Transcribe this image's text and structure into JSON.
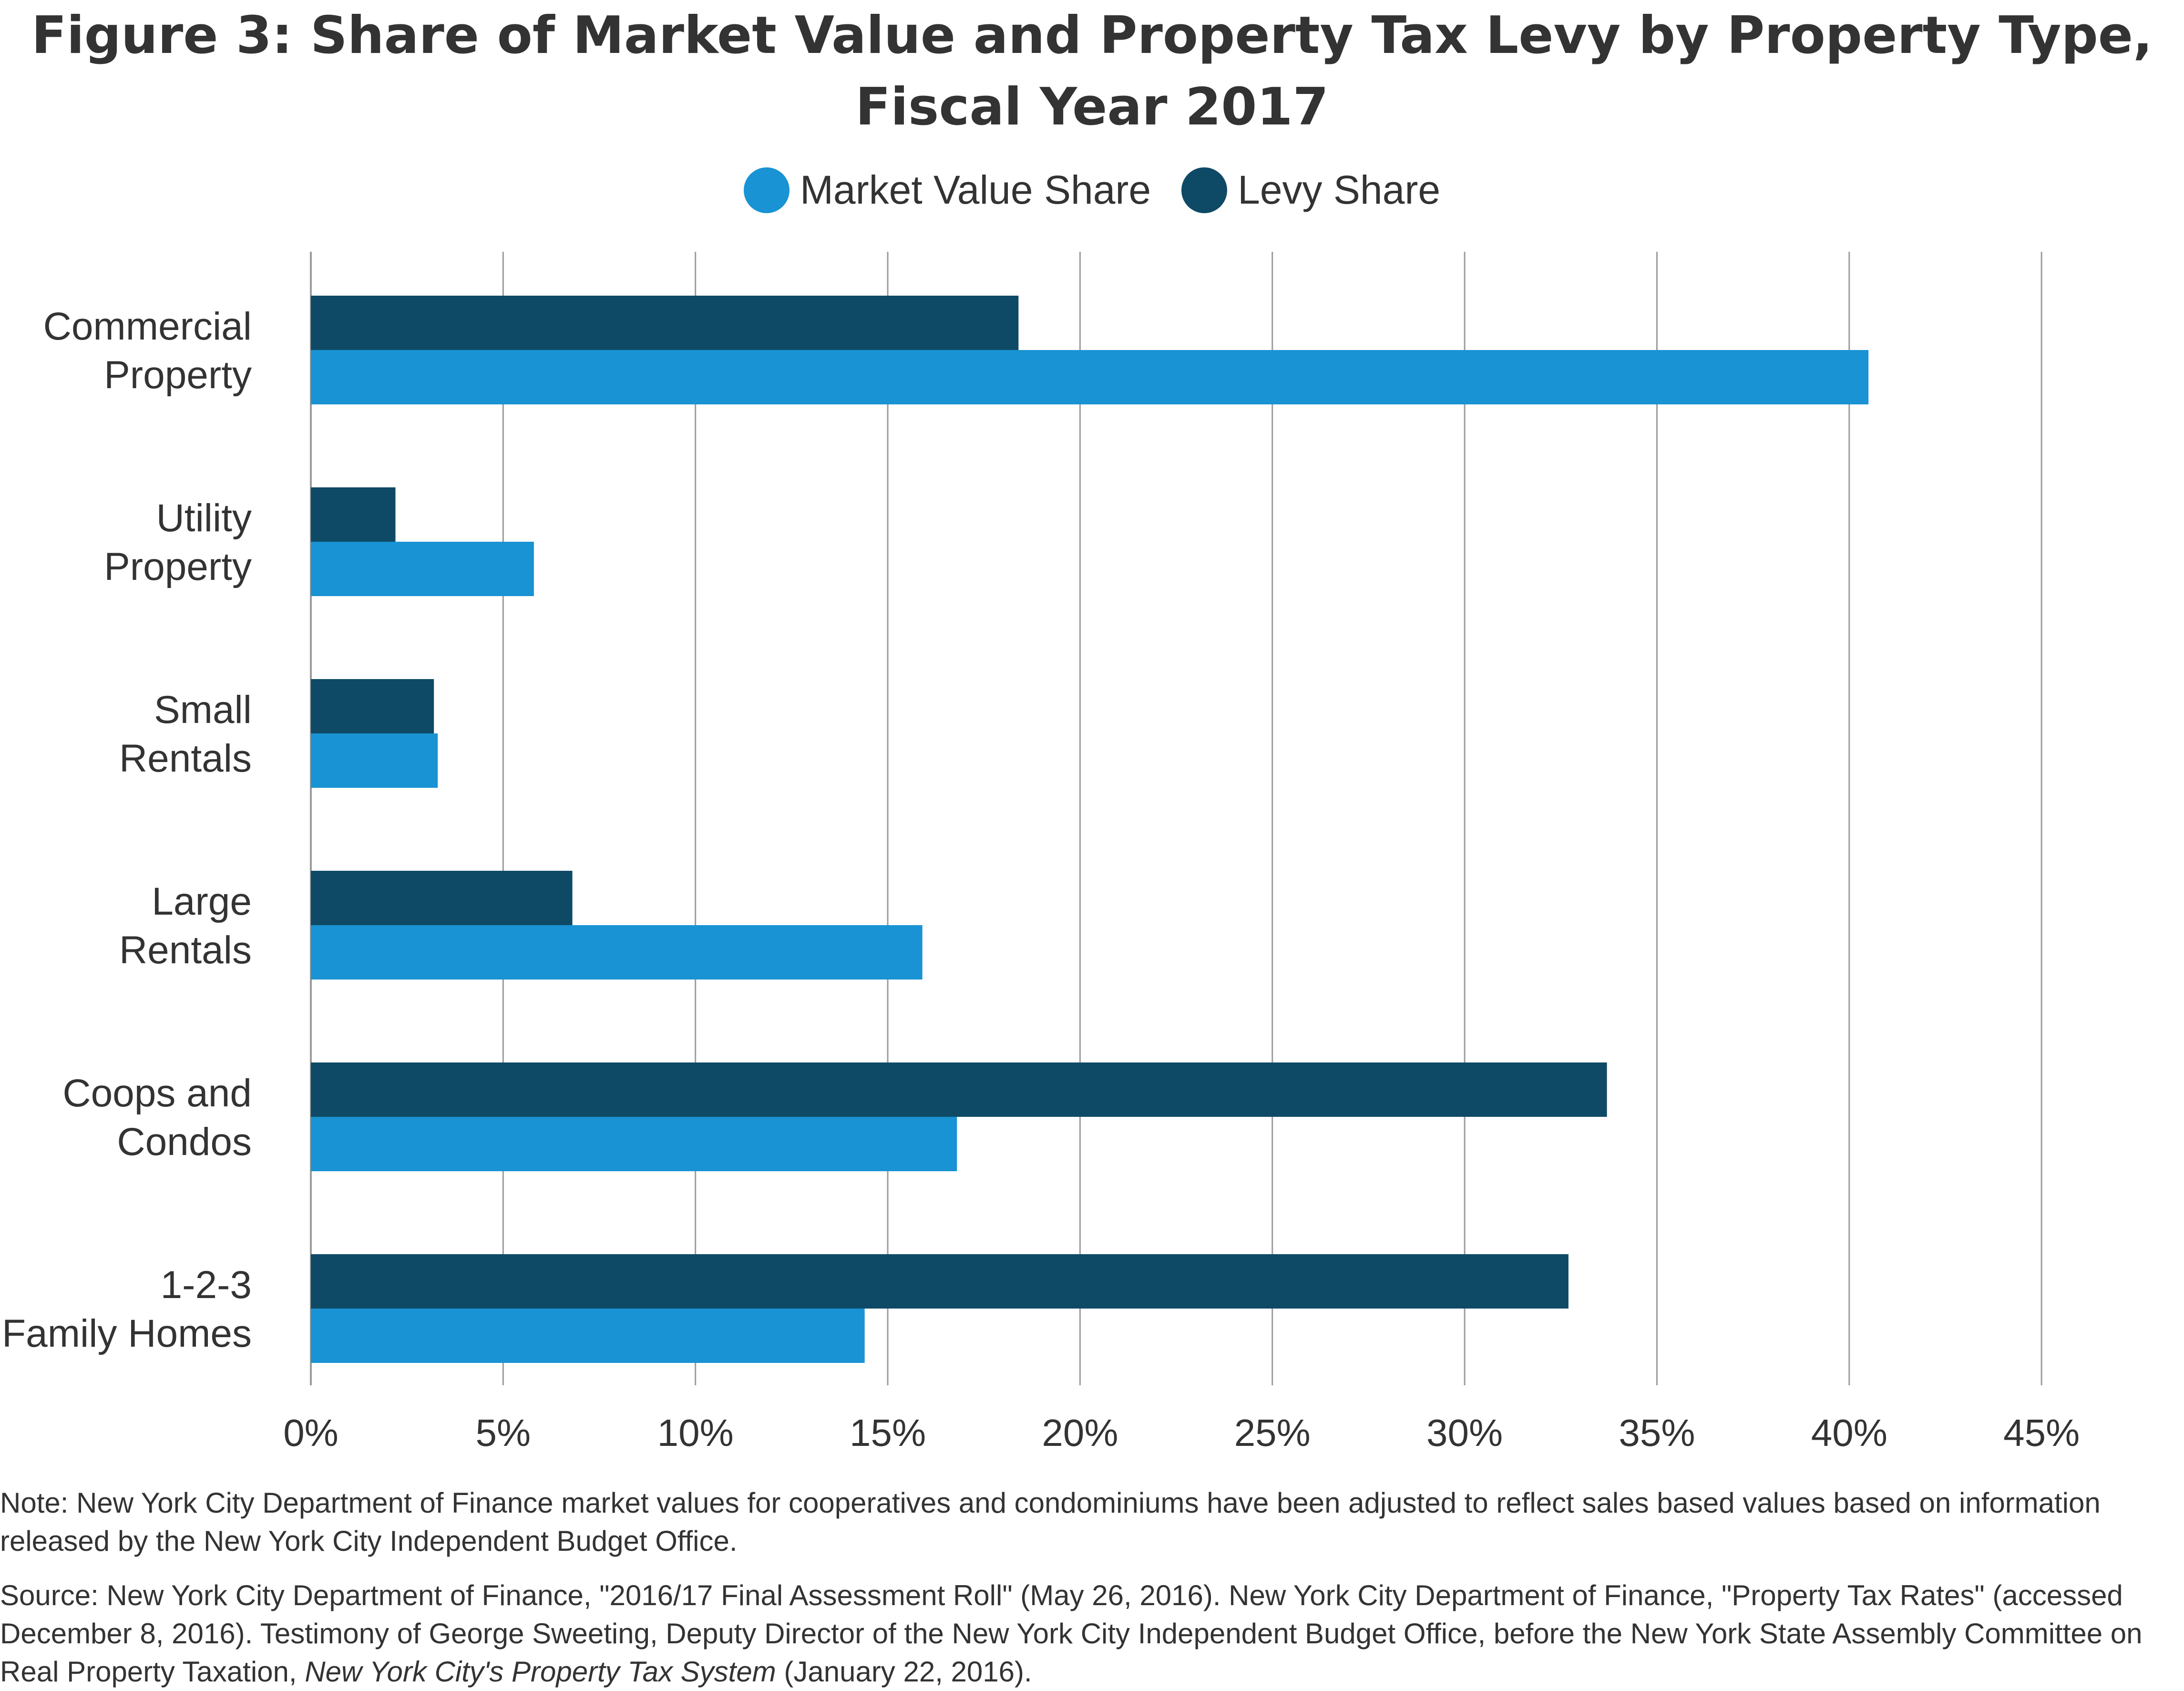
{
  "title_lines": [
    "Figure 3: Share of Market Value and Property Tax Levy by Property Type,",
    "Fiscal Year 2017"
  ],
  "legend": {
    "market_value": "Market Value Share",
    "levy": "Levy Share"
  },
  "colors": {
    "market_value": "#1993d3",
    "levy": "#0e4a66",
    "grid": "#9b9b9b",
    "text": "#333333"
  },
  "chart_data": {
    "type": "bar",
    "orientation": "horizontal",
    "categories": [
      [
        "Commercial",
        "Property"
      ],
      [
        "Utility",
        "Property"
      ],
      [
        "Small",
        "Rentals"
      ],
      [
        "Large",
        "Rentals"
      ],
      [
        "Coops and",
        "Condos"
      ],
      [
        "1-2-3",
        "Family Homes"
      ]
    ],
    "series": [
      {
        "name": "Levy Share",
        "values": [
          18.4,
          2.2,
          3.2,
          6.8,
          33.7,
          32.7
        ]
      },
      {
        "name": "Market Value Share",
        "values": [
          40.5,
          5.8,
          3.3,
          15.9,
          16.8,
          14.4
        ]
      }
    ],
    "xlim": [
      0,
      45
    ],
    "x_ticks": [
      "0%",
      "5%",
      "10%",
      "15%",
      "20%",
      "25%",
      "30%",
      "35%",
      "40%",
      "45%"
    ],
    "grid": "vertical",
    "legend_position": "top"
  },
  "note": "Note: New York City Department of Finance market values for cooperatives and condominiums  have been adjusted to reflect sales based values based on information released by the New York City Independent Budget Office.",
  "source": {
    "text": "Source: New York City Department of Finance, \"2016/17 Final Assessment Roll\" (May 26, 2016).  New York City Department of Finance, \"Property Tax Rates\" (accessed December 8, 2016).  Testimony of George Sweeting, Deputy Director of the New York City Independent Budget Office, before the New York State Assembly Committee on Real Property Taxation, ",
    "italic": "New York City's Property Tax System",
    "tail": " (January 22, 2016)."
  }
}
